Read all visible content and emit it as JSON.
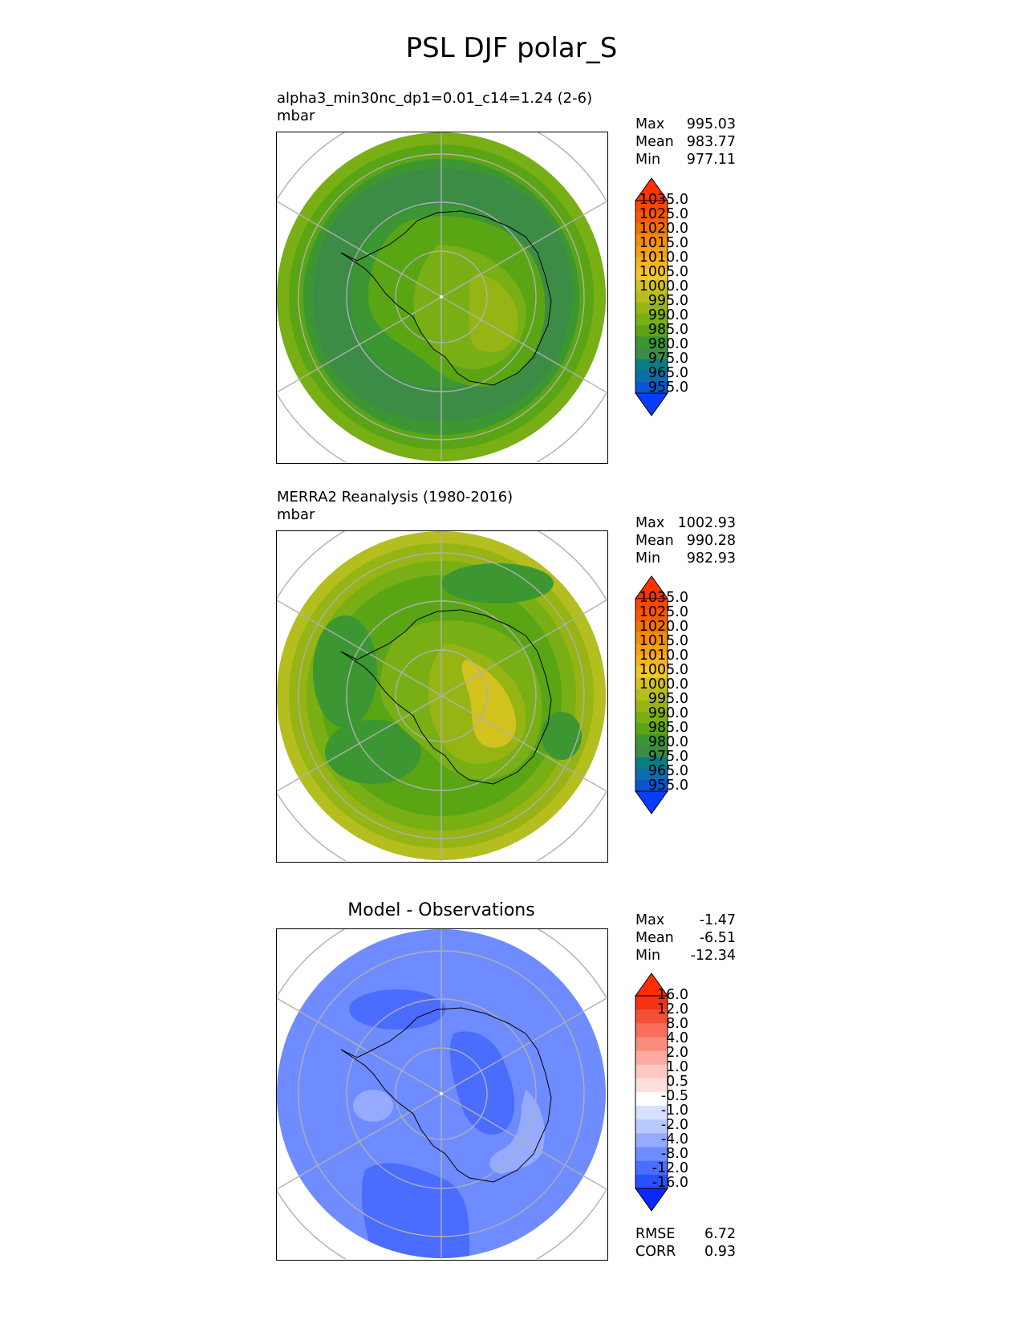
{
  "title": "PSL DJF polar_S",
  "panels": [
    {
      "id": "model",
      "title_line1": "alpha3_min30nc_dp1=0.01_c14=1.24 (2-6)",
      "title_line2": "mbar",
      "stats": {
        "max_label": "Max",
        "max": "995.03",
        "mean_label": "Mean",
        "mean": "983.77",
        "min_label": "Min",
        "min": "977.11"
      },
      "colorbar_labels": [
        "1035.0",
        "1025.0",
        "1020.0",
        "1015.0",
        "1010.0",
        "1005.0",
        "1000.0",
        "995.0",
        "990.0",
        "985.0",
        "980.0",
        "975.0",
        "965.0",
        "955.0"
      ]
    },
    {
      "id": "obs",
      "title_line1": "MERRA2 Reanalysis (1980-2016)",
      "title_line2": "mbar",
      "stats": {
        "max_label": "Max",
        "max": "1002.93",
        "mean_label": "Mean",
        "mean": "990.28",
        "min_label": "Min",
        "min": "982.93"
      },
      "colorbar_labels": [
        "1035.0",
        "1025.0",
        "1020.0",
        "1015.0",
        "1010.0",
        "1005.0",
        "1000.0",
        "995.0",
        "990.0",
        "985.0",
        "980.0",
        "975.0",
        "965.0",
        "955.0"
      ]
    },
    {
      "id": "diff",
      "title_center": "Model - Observations",
      "stats": {
        "max_label": "Max",
        "max": "-1.47",
        "mean_label": "Mean",
        "mean": "-6.51",
        "min_label": "Min",
        "min": "-12.34"
      },
      "colorbar_labels": [
        "16.0",
        "12.0",
        "8.0",
        "4.0",
        "2.0",
        "1.0",
        "0.5",
        "-0.5",
        "-1.0",
        "-2.0",
        "-4.0",
        "-8.0",
        "-12.0",
        "-16.0"
      ],
      "metrics": {
        "rmse_label": "RMSE",
        "rmse": "6.72",
        "corr_label": "CORR",
        "corr": "0.93"
      }
    }
  ],
  "colors": {
    "abs_scale": [
      "#0a3cff",
      "#0a55d2",
      "#0a6eaa",
      "#0a7d82",
      "#3c8c46",
      "#3c9632",
      "#5aa514",
      "#78af14",
      "#96b414",
      "#b4be1e",
      "#d2c31e",
      "#f0c828",
      "#f5b41e",
      "#f5a014",
      "#f58c0a",
      "#f57305",
      "#fa5a05",
      "#ff4600",
      "#ff3200"
    ],
    "diff_scale": [
      "#0a28ff",
      "#2850ff",
      "#4a6cff",
      "#6e8cff",
      "#96aaff",
      "#b9c8ff",
      "#d7e0ff",
      "#ffffff",
      "#fde0dc",
      "#fcc8c0",
      "#fcaaa0",
      "#fa8c7d",
      "#f86e5a",
      "#f55037",
      "#f53214",
      "#ff2d00"
    ]
  }
}
